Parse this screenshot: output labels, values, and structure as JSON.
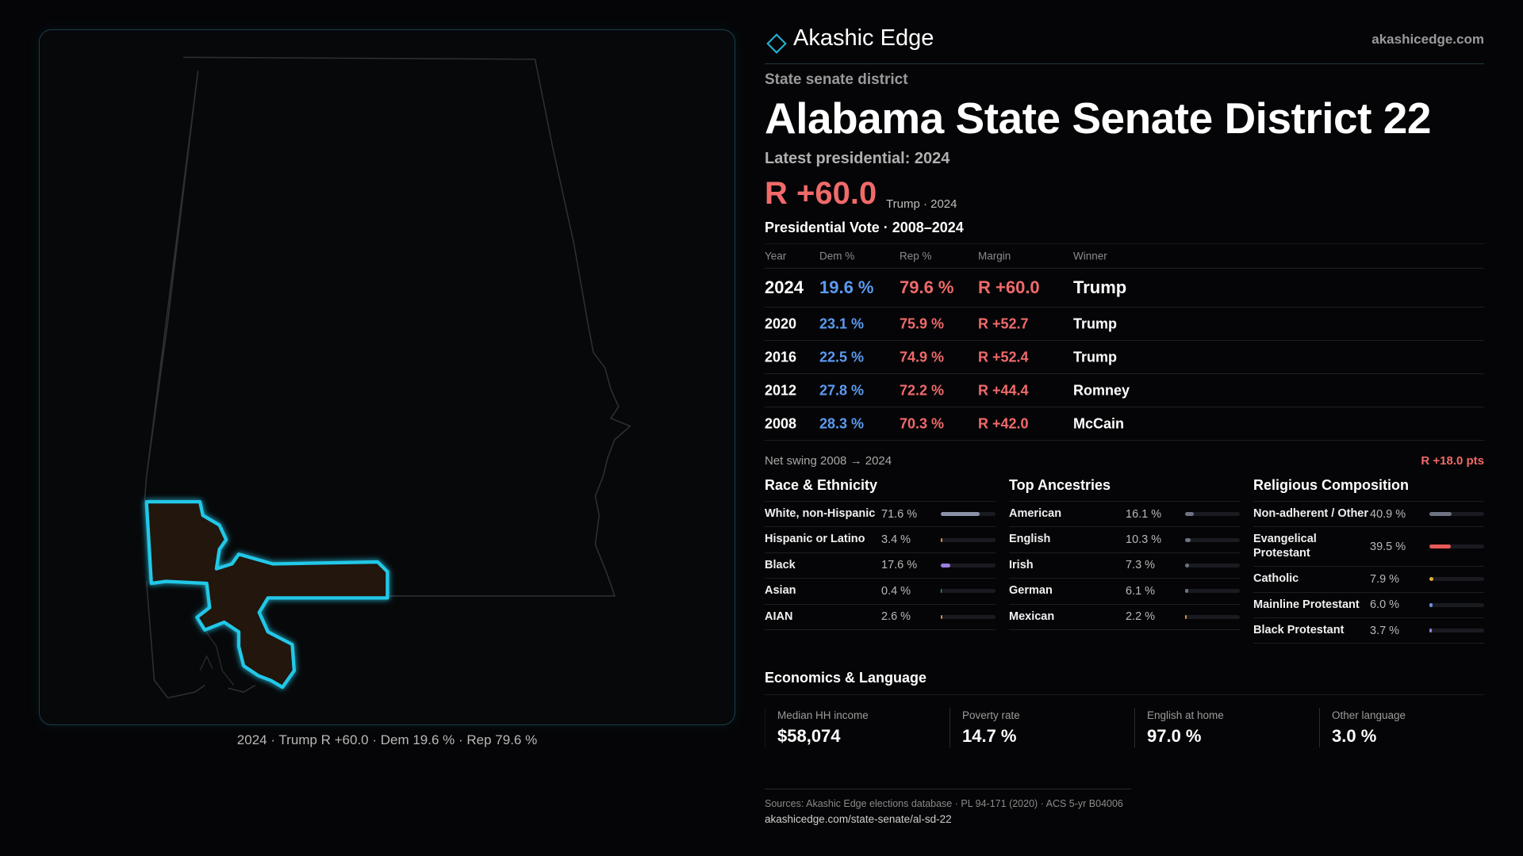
{
  "header": {
    "brand": "Akashic Edge",
    "domain": "akashicedge.com"
  },
  "kicker": "State senate district",
  "title": "Alabama State Senate District 22",
  "latest": {
    "label": "Latest presidential: 2024",
    "margin": "R +60.0",
    "detail": "Trump · 2024"
  },
  "vote_table": {
    "title": "Presidential Vote · 2008–2024",
    "columns": [
      "Year",
      "Dem %",
      "Rep %",
      "Margin",
      "Winner"
    ],
    "rows": [
      [
        "2024",
        "19.6 %",
        "79.6 %",
        "R +60.0",
        "Trump"
      ],
      [
        "2020",
        "23.1 %",
        "75.9 %",
        "R +52.7",
        "Trump"
      ],
      [
        "2016",
        "22.5 %",
        "74.9 %",
        "R +52.4",
        "Trump"
      ],
      [
        "2012",
        "27.8 %",
        "72.2 %",
        "R +44.4",
        "Romney"
      ],
      [
        "2008",
        "28.3 %",
        "70.3 %",
        "R +42.0",
        "McCain"
      ]
    ]
  },
  "swing": {
    "label": "Net swing 2008 → 2024",
    "value": "R +18.0 pts"
  },
  "sections": [
    {
      "title": "Race & Ethnicity",
      "items": [
        {
          "name": "White, non-Hispanic",
          "value": 71.6,
          "label": "71.6 %",
          "color": "#8b93a8"
        },
        {
          "name": "Hispanic or Latino",
          "value": 3.4,
          "label": "3.4 %",
          "color": "#e0903a"
        },
        {
          "name": "Black",
          "value": 17.6,
          "label": "17.6 %",
          "color": "#9b7de0"
        },
        {
          "name": "Asian",
          "value": 0.4,
          "label": "0.4 %",
          "color": "#3fb8a0"
        },
        {
          "name": "AIAN",
          "value": 2.6,
          "label": "2.6 %",
          "color": "#d08a40"
        }
      ]
    },
    {
      "title": "Top Ancestries",
      "items": [
        {
          "name": "American",
          "value": 16.1,
          "label": "16.1 %",
          "color": "#6e7383"
        },
        {
          "name": "English",
          "value": 10.3,
          "label": "10.3 %",
          "color": "#6e7383"
        },
        {
          "name": "Irish",
          "value": 7.3,
          "label": "7.3 %",
          "color": "#6e7383"
        },
        {
          "name": "German",
          "value": 6.1,
          "label": "6.1 %",
          "color": "#6e7383"
        },
        {
          "name": "Mexican",
          "value": 2.2,
          "label": "2.2 %",
          "color": "#e0903a"
        }
      ]
    },
    {
      "title": "Religious Composition",
      "items": [
        {
          "name": "Non-adherent / Other",
          "value": 40.9,
          "label": "40.9 %",
          "color": "#6e7383"
        },
        {
          "name": "Evangelical Protestant",
          "value": 39.5,
          "label": "39.5 %",
          "color": "#e85a5a"
        },
        {
          "name": "Catholic",
          "value": 7.9,
          "label": "7.9 %",
          "color": "#e0b030"
        },
        {
          "name": "Mainline Protestant",
          "value": 6.0,
          "label": "6.0 %",
          "color": "#6c8ce0"
        },
        {
          "name": "Black Protestant",
          "value": 3.7,
          "label": "3.7 %",
          "color": "#9c7ce0"
        }
      ]
    }
  ],
  "economics": {
    "title": "Economics & Language",
    "stats": [
      {
        "label": "Median HH income",
        "value": "$58,074"
      },
      {
        "label": "Poverty rate",
        "value": "14.7 %"
      },
      {
        "label": "English at home",
        "value": "97.0 %"
      },
      {
        "label": "Other language",
        "value": "3.0 %"
      }
    ]
  },
  "sources": {
    "text": "Sources: Akashic Edge elections database · PL 94-171 (2020) · ACS 5-yr B04006",
    "url": "akashicedge.com/state-senate/al-sd-22"
  },
  "map_caption": "2024 · Trump R +60.0 · Dem 19.6 % · Rep 79.6 %"
}
